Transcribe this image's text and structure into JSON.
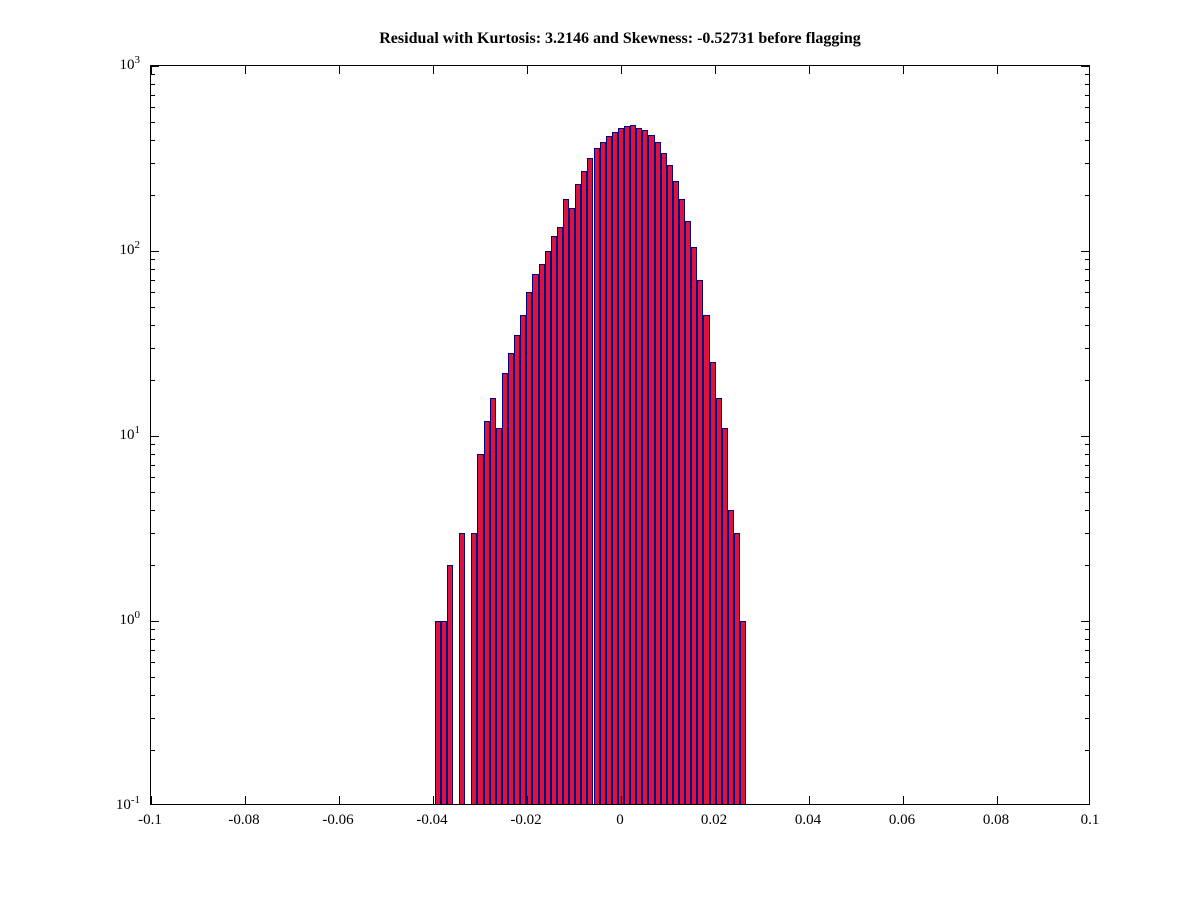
{
  "chart_data": {
    "type": "bar",
    "subtype": "histogram",
    "title": "Residual with Kurtosis: 3.2146 and Skewness: -0.52731 before flagging",
    "xlabel": "",
    "ylabel": "",
    "xlim": [
      -0.1,
      0.1
    ],
    "y_scale": "log",
    "ylim_log": [
      -1,
      3
    ],
    "grid": false,
    "legend": "none",
    "x_ticks": [
      -0.1,
      -0.08,
      -0.06,
      -0.04,
      -0.02,
      0,
      0.02,
      0.04,
      0.06,
      0.08,
      0.1
    ],
    "x_tick_labels": [
      "-0.1",
      "-0.08",
      "-0.06",
      "-0.04",
      "-0.02",
      "0",
      "0.02",
      "0.04",
      "0.06",
      "0.08",
      "0.1"
    ],
    "y_tick_base": "10",
    "y_tick_exponents": [
      -1,
      0,
      1,
      2,
      3
    ],
    "bin_width": 0.0013,
    "bin_centers": [
      -0.039,
      -0.0377,
      -0.0364,
      -0.0351,
      -0.0338,
      -0.0325,
      -0.0312,
      -0.0299,
      -0.0286,
      -0.0273,
      -0.026,
      -0.0247,
      -0.0234,
      -0.0221,
      -0.0208,
      -0.0195,
      -0.0182,
      -0.0169,
      -0.0156,
      -0.0143,
      -0.013,
      -0.0117,
      -0.0104,
      -0.0091,
      -0.0078,
      -0.0065,
      -0.0052,
      -0.0039,
      -0.0026,
      -0.0013,
      0,
      0.0013,
      0.0026,
      0.0039,
      0.0052,
      0.0065,
      0.0078,
      0.0091,
      0.0104,
      0.0117,
      0.013,
      0.0143,
      0.0156,
      0.0169,
      0.0182,
      0.0195,
      0.0208,
      0.0221,
      0.0234,
      0.0247,
      0.026
    ],
    "counts": [
      1,
      1,
      2,
      0,
      3,
      0,
      3,
      8,
      12,
      16,
      11,
      22,
      28,
      35,
      45,
      60,
      75,
      85,
      100,
      120,
      135,
      190,
      170,
      230,
      270,
      320,
      360,
      390,
      420,
      440,
      460,
      475,
      480,
      465,
      450,
      425,
      390,
      340,
      290,
      240,
      190,
      145,
      105,
      70,
      45,
      25,
      16,
      11,
      4,
      3,
      1
    ],
    "bar_fill": "#DC143C",
    "bar_edge": "#00008B",
    "axis_color": "#000000",
    "background": "#FFFFFF"
  }
}
